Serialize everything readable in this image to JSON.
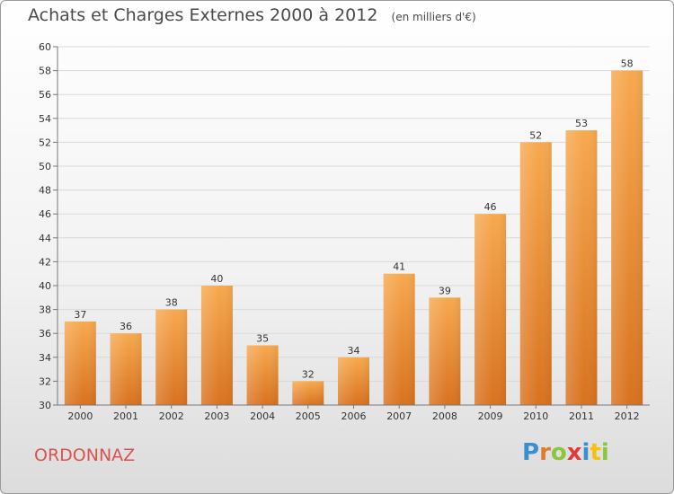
{
  "header": {
    "title": "Achats et Charges Externes 2000 à 2012",
    "unit": "(en milliers d'€)"
  },
  "footer": {
    "place": "ORDONNAZ",
    "brand": "Proxiti"
  },
  "colors": {
    "bar_light": "#f7a94f",
    "bar_dark": "#d8721f",
    "town": "#d9534f"
  },
  "chart_data": {
    "type": "bar",
    "title": "Achats et Charges Externes 2000 à 2012",
    "subtitle": "(en milliers d'€)",
    "categories": [
      "2000",
      "2001",
      "2002",
      "2003",
      "2004",
      "2005",
      "2006",
      "2007",
      "2008",
      "2009",
      "2010",
      "2011",
      "2012"
    ],
    "values": [
      37,
      36,
      38,
      40,
      35,
      32,
      34,
      41,
      39,
      46,
      52,
      53,
      58
    ],
    "ylim": [
      30,
      60
    ],
    "yticks": [
      30,
      32,
      34,
      36,
      38,
      40,
      42,
      44,
      46,
      48,
      50,
      52,
      54,
      56,
      58,
      60
    ],
    "grid": true,
    "data_labels": true
  }
}
